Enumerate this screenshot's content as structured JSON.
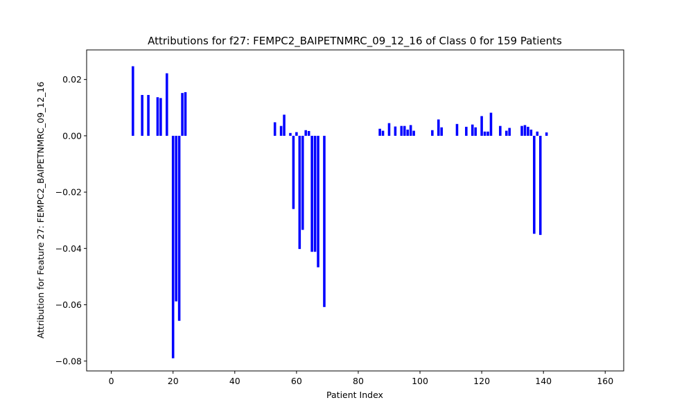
{
  "chart_data": {
    "type": "bar",
    "title": "Attributions for f27: FEMPC2_BAIPETNMRC_09_12_16 of Class 0 for 159 Patients",
    "xlabel": "Patient Index",
    "ylabel": "Attribution for Feature 27: FEMPC2_BAIPETNMRC_09_12_16",
    "xlim": [
      -8,
      166
    ],
    "ylim": [
      -0.0835,
      0.0305
    ],
    "x_ticks": [
      0,
      20,
      40,
      60,
      80,
      100,
      120,
      140,
      160
    ],
    "y_ticks": [
      -0.08,
      -0.06,
      -0.04,
      -0.02,
      0.0,
      0.02
    ],
    "y_tick_labels": [
      "−0.08",
      "−0.06",
      "−0.04",
      "−0.02",
      "0.00",
      "0.02"
    ],
    "grid": false,
    "bar_color": "#0000ff",
    "bar_width": 0.8,
    "points": [
      {
        "x": 7,
        "y": 0.0247
      },
      {
        "x": 10,
        "y": 0.0145
      },
      {
        "x": 12,
        "y": 0.0145
      },
      {
        "x": 15,
        "y": 0.0137
      },
      {
        "x": 16,
        "y": 0.0134
      },
      {
        "x": 18,
        "y": 0.0222
      },
      {
        "x": 20,
        "y": -0.079
      },
      {
        "x": 21,
        "y": -0.0588
      },
      {
        "x": 22,
        "y": -0.0657
      },
      {
        "x": 23,
        "y": 0.0152
      },
      {
        "x": 24,
        "y": 0.0155
      },
      {
        "x": 53,
        "y": 0.0048
      },
      {
        "x": 55,
        "y": 0.0035
      },
      {
        "x": 56,
        "y": 0.0075
      },
      {
        "x": 58,
        "y": 0.001
      },
      {
        "x": 59,
        "y": -0.026
      },
      {
        "x": 60,
        "y": 0.0013
      },
      {
        "x": 61,
        "y": -0.0402
      },
      {
        "x": 62,
        "y": -0.0334
      },
      {
        "x": 63,
        "y": 0.002
      },
      {
        "x": 64,
        "y": 0.0017
      },
      {
        "x": 65,
        "y": -0.0412
      },
      {
        "x": 66,
        "y": -0.0412
      },
      {
        "x": 67,
        "y": -0.0467
      },
      {
        "x": 69,
        "y": -0.0608
      },
      {
        "x": 87,
        "y": 0.0025
      },
      {
        "x": 88,
        "y": 0.0018
      },
      {
        "x": 90,
        "y": 0.0045
      },
      {
        "x": 92,
        "y": 0.0033
      },
      {
        "x": 94,
        "y": 0.0035
      },
      {
        "x": 95,
        "y": 0.0035
      },
      {
        "x": 96,
        "y": 0.0022
      },
      {
        "x": 97,
        "y": 0.0038
      },
      {
        "x": 98,
        "y": 0.0018
      },
      {
        "x": 104,
        "y": 0.002
      },
      {
        "x": 106,
        "y": 0.0058
      },
      {
        "x": 107,
        "y": 0.003
      },
      {
        "x": 112,
        "y": 0.0042
      },
      {
        "x": 115,
        "y": 0.0032
      },
      {
        "x": 117,
        "y": 0.004
      },
      {
        "x": 118,
        "y": 0.003
      },
      {
        "x": 120,
        "y": 0.007
      },
      {
        "x": 121,
        "y": 0.0015
      },
      {
        "x": 122,
        "y": 0.0015
      },
      {
        "x": 123,
        "y": 0.0082
      },
      {
        "x": 126,
        "y": 0.0035
      },
      {
        "x": 128,
        "y": 0.0018
      },
      {
        "x": 129,
        "y": 0.0028
      },
      {
        "x": 133,
        "y": 0.0035
      },
      {
        "x": 134,
        "y": 0.0038
      },
      {
        "x": 135,
        "y": 0.0032
      },
      {
        "x": 136,
        "y": 0.0022
      },
      {
        "x": 137,
        "y": -0.0348
      },
      {
        "x": 138,
        "y": 0.0015
      },
      {
        "x": 139,
        "y": -0.0352
      },
      {
        "x": 141,
        "y": 0.0012
      }
    ]
  }
}
